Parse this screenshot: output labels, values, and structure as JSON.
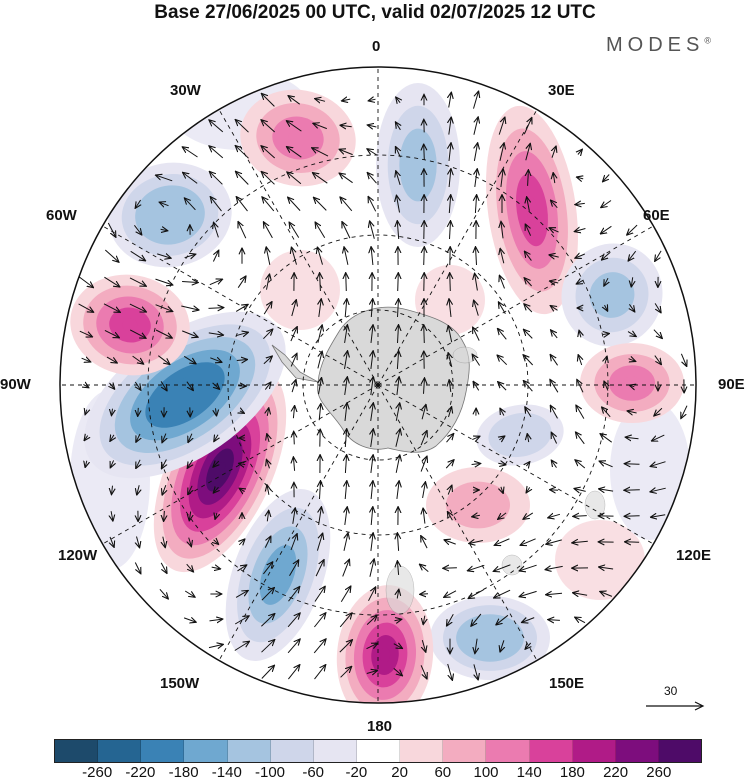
{
  "title": "Base 27/06/2025 00 UTC, valid 02/07/2025 12 UTC",
  "brand": "MODES",
  "brand_mark": "®",
  "longitude_labels": [
    "0",
    "30E",
    "60E",
    "90E",
    "120E",
    "150E",
    "180",
    "150W",
    "120W",
    "90W",
    "60W",
    "30W"
  ],
  "reference_vector": "30",
  "projection": "south-polar-stereographic",
  "colorbar": {
    "labels": [
      "-260",
      "-220",
      "-180",
      "-140",
      "-100",
      "-60",
      "-20",
      "20",
      "60",
      "100",
      "140",
      "180",
      "220",
      "260"
    ],
    "colors": [
      "#1d4a6b",
      "#256592",
      "#3a82b5",
      "#6fa8d0",
      "#a5c4e0",
      "#cfd6ea",
      "#e6e5f2",
      "#ffffff",
      "#f8d7dc",
      "#f3acc0",
      "#eb7bb0",
      "#d9419b",
      "#b01b87",
      "#7d0d7d",
      "#4e0b68"
    ]
  },
  "colors": {
    "land": "#d9d9d9",
    "ocean_background": "#ffffff",
    "arrow": "#111111",
    "graticule": "#111111"
  },
  "anomaly_centers": [
    {
      "sign": "positive",
      "level": 100,
      "lon": "30W"
    },
    {
      "sign": "negative",
      "level": -120,
      "lon": "0"
    },
    {
      "sign": "positive",
      "level": 140,
      "lon": "30E"
    },
    {
      "sign": "negative",
      "level": -120,
      "lon": "60E"
    },
    {
      "sign": "positive",
      "level": 100,
      "lon": "90E"
    },
    {
      "sign": "negative",
      "level": -100,
      "lon": "110E"
    },
    {
      "sign": "positive",
      "level": 60,
      "lon": "130E"
    },
    {
      "sign": "negative",
      "level": -140,
      "lon": "150E"
    },
    {
      "sign": "positive",
      "level": 180,
      "lon": "180"
    },
    {
      "sign": "negative",
      "level": -160,
      "lon": "150W"
    },
    {
      "sign": "positive",
      "level": 260,
      "lon": "120W"
    },
    {
      "sign": "negative",
      "level": -220,
      "lon": "90W"
    },
    {
      "sign": "positive",
      "level": 140,
      "lon": "70W"
    },
    {
      "sign": "negative",
      "level": -140,
      "lon": "50W"
    }
  ]
}
